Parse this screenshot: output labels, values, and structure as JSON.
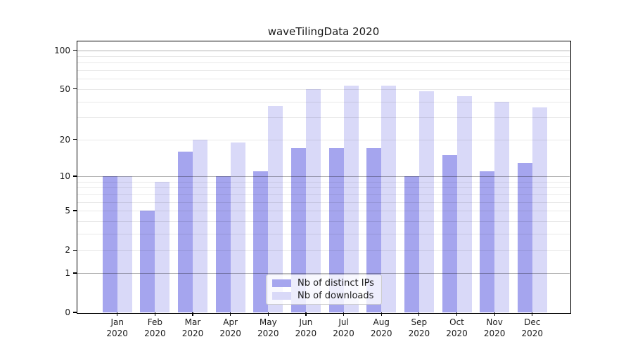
{
  "figure": {
    "title": "waveTilingData 2020",
    "background_color": "#ffffff"
  },
  "legend": {
    "position": "lower center",
    "items": [
      {
        "label": "Nb of distinct IPs",
        "color": "#a5a5ee"
      },
      {
        "label": "Nb of downloads",
        "color": "#d9d9f8"
      }
    ]
  },
  "chart_data": {
    "type": "bar",
    "title": "waveTilingData 2020",
    "categories": [
      "Jan",
      "Feb",
      "Mar",
      "Apr",
      "May",
      "Jun",
      "Jul",
      "Aug",
      "Sep",
      "Oct",
      "Nov",
      "Dec"
    ],
    "x_sublabel": "2020",
    "series": [
      {
        "name": "Nb of distinct IPs",
        "color": "#a5a5ee",
        "values": [
          10,
          5,
          16,
          10,
          11,
          17,
          17,
          17,
          10,
          15,
          11,
          13
        ]
      },
      {
        "name": "Nb of downloads",
        "color": "#d9d9f8",
        "values": [
          10,
          9,
          20,
          19,
          37,
          50,
          53,
          53,
          48,
          44,
          40,
          36
        ]
      }
    ],
    "yscale": "log10(value+1)",
    "ylim": [
      0,
      117
    ],
    "y_tick_labels": [
      0,
      1,
      2,
      5,
      10,
      20,
      50,
      100
    ],
    "y_major_gridlines": [
      1,
      10,
      100
    ],
    "y_minor_gridlines": [
      2,
      3,
      4,
      5,
      6,
      7,
      8,
      9,
      20,
      30,
      40,
      50,
      60,
      70,
      80,
      90
    ],
    "grid": true,
    "legend_position": "lower center",
    "colors": {
      "major_grid": "#b3b3b3",
      "minor_grid": "#e8e8e8",
      "spine": "#000000",
      "text": "#1a1a1a"
    }
  }
}
